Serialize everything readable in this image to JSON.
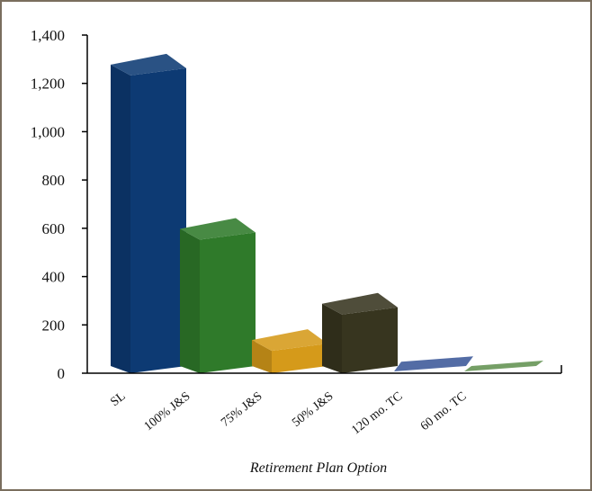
{
  "chart_data": {
    "type": "bar",
    "style": "3d",
    "categories": [
      "SL",
      "100% J&S",
      "75% J&S",
      "50% J&S",
      "120 mo. TC",
      "60 mo. TC"
    ],
    "values": [
      1270,
      590,
      130,
      280,
      40,
      10
    ],
    "colors": [
      "#0d3a73",
      "#2f7a2a",
      "#d59a1a",
      "#37351f",
      "#4a64a0",
      "#6e9a5e"
    ],
    "xlabel": "Retirement Plan Option",
    "ylabel": "",
    "ylim": [
      0,
      1400
    ],
    "yticks": [
      0,
      200,
      400,
      600,
      800,
      1000,
      1200,
      1400
    ],
    "ytick_labels": [
      "0",
      "200",
      "400",
      "600",
      "800",
      "1,000",
      "1,200",
      "1,400"
    ],
    "grid": false
  }
}
